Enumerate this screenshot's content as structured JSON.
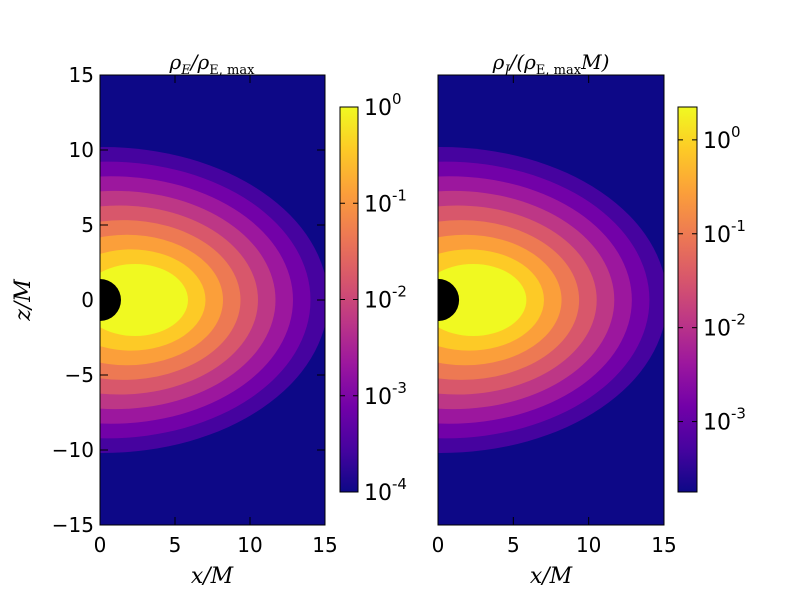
{
  "chart_data": [
    {
      "type": "heatmap",
      "title": "ρE/ρE, max",
      "title_parts": {
        "base": "ρ",
        "sub1": "E",
        "slash": "/ρ",
        "sub2": "E, max",
        "tail": ""
      },
      "xlabel": "x/M",
      "ylabel": "z/M",
      "xlim": [
        0,
        15
      ],
      "ylim": [
        -15,
        15
      ],
      "xticks": [
        0,
        5,
        10,
        15
      ],
      "yticks": [
        -15,
        -10,
        -5,
        0,
        5,
        10,
        15
      ],
      "xticklabels": [
        "0",
        "5",
        "10",
        "15"
      ],
      "yticklabels": [
        "−15",
        "−10",
        "−5",
        "0",
        "5",
        "10",
        "15"
      ],
      "colormap": "plasma",
      "colorscale": "log",
      "clim_exponents": [
        -4,
        0
      ],
      "colorbar_ticks": [
        {
          "base": "10",
          "exp": "0",
          "value": 1
        },
        {
          "base": "10",
          "exp": "-1",
          "value": 0.1
        },
        {
          "base": "10",
          "exp": "-2",
          "value": 0.01
        },
        {
          "base": "10",
          "exp": "-3",
          "value": 0.001
        },
        {
          "base": "10",
          "exp": "-4",
          "value": 0.0001
        }
      ],
      "field": {
        "peak_x": 2.6,
        "peak_z": 0,
        "outer_radius_x": 15,
        "outer_radius_z": 10.2,
        "horizon_radius": 1.4
      }
    },
    {
      "type": "heatmap",
      "title": "ρJ/(ρE, maxM)",
      "title_parts": {
        "base": "ρ",
        "sub1": "J",
        "slash": "/(ρ",
        "sub2": "E, max",
        "tail": "M)"
      },
      "xlabel": "x/M",
      "ylabel": "",
      "xlim": [
        0,
        15
      ],
      "ylim": [
        -15,
        15
      ],
      "xticks": [
        0,
        5,
        10,
        15
      ],
      "yticks": [],
      "xticklabels": [
        "0",
        "5",
        "10",
        "15"
      ],
      "yticklabels": [],
      "colormap": "plasma",
      "colorscale": "log",
      "clim_exponents": [
        -3.75,
        0.35
      ],
      "colorbar_ticks": [
        {
          "base": "10",
          "exp": "0",
          "value": 1
        },
        {
          "base": "10",
          "exp": "-1",
          "value": 0.1
        },
        {
          "base": "10",
          "exp": "-2",
          "value": 0.01
        },
        {
          "base": "10",
          "exp": "-3",
          "value": 0.001
        }
      ],
      "field": {
        "peak_x": 2.6,
        "peak_z": 0,
        "outer_radius_x": 15,
        "outer_radius_z": 10.2,
        "horizon_radius": 1.4
      }
    }
  ],
  "colors": {
    "plasma": [
      "#0d0887",
      "#46039f",
      "#7201a8",
      "#9c179e",
      "#bd3786",
      "#d8576b",
      "#ed7953",
      "#fb9f3a",
      "#fdca26",
      "#f0f921"
    ],
    "horizon": "#000000",
    "axes": "#000000",
    "background": "#ffffff"
  }
}
